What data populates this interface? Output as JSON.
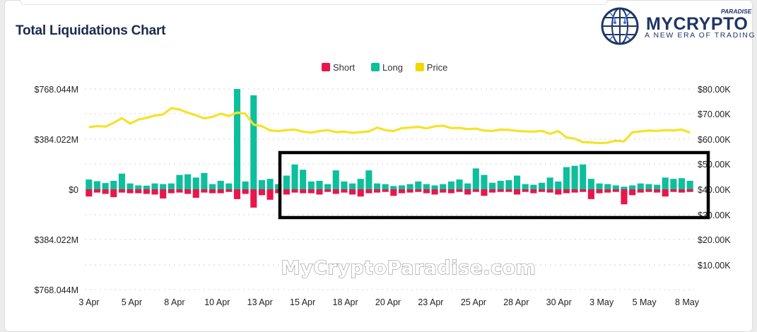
{
  "title": "Total Liquidations Chart",
  "logo": {
    "word": "MYCRYPTO",
    "tagline": "A NEW ERA OF TRADING",
    "paradise": "PARADISE",
    "icon": "globe-circuit-icon",
    "color": "#1e3566"
  },
  "watermark": "MyCryptoParadise.com",
  "chart_data": {
    "type": "bar",
    "legend": [
      {
        "name": "Short",
        "color": "#e8164b"
      },
      {
        "name": "Long",
        "color": "#0dbf9c"
      },
      {
        "name": "Price",
        "color": "#f2d600"
      }
    ],
    "legend_position": "top-center",
    "x_tick_labels": [
      "3 Apr",
      "5 Apr",
      "8 Apr",
      "10 Apr",
      "13 Apr",
      "15 Apr",
      "18 Apr",
      "20 Apr",
      "23 Apr",
      "25 Apr",
      "28 Apr",
      "30 Apr",
      "3 May",
      "5 May",
      "8 May"
    ],
    "y_left_tick_labels": [
      "$768.044M",
      "$384.022M",
      "$0",
      "$384.022M",
      "$768.044M"
    ],
    "y_left_range": [
      -768.044,
      768.044
    ],
    "y_right_tick_labels": [
      "$80.00K",
      "$70.00K",
      "$60.00K",
      "$50.00K",
      "$40.00K",
      "$30.00K",
      "$20.00K",
      "$10.00K"
    ],
    "y_right_range": [
      0,
      80000
    ],
    "grid": "horizontal dotted",
    "long": [
      75,
      62,
      48,
      65,
      120,
      45,
      30,
      28,
      45,
      40,
      45,
      110,
      115,
      90,
      125,
      40,
      65,
      45,
      768,
      60,
      720,
      70,
      80,
      40,
      105,
      190,
      150,
      60,
      65,
      40,
      145,
      60,
      45,
      80,
      145,
      45,
      40,
      25,
      30,
      40,
      60,
      40,
      30,
      40,
      60,
      75,
      45,
      160,
      110,
      50,
      65,
      70,
      105,
      40,
      35,
      50,
      90,
      60,
      170,
      180,
      190,
      80,
      45,
      40,
      30,
      20,
      30,
      45,
      40,
      35,
      90,
      80,
      85,
      65
    ],
    "short": [
      55,
      25,
      35,
      60,
      25,
      30,
      30,
      35,
      40,
      70,
      30,
      25,
      35,
      65,
      25,
      30,
      30,
      20,
      75,
      35,
      140,
      45,
      80,
      30,
      40,
      25,
      30,
      30,
      40,
      20,
      35,
      25,
      40,
      55,
      30,
      25,
      20,
      50,
      30,
      25,
      20,
      30,
      40,
      25,
      30,
      20,
      40,
      20,
      50,
      25,
      20,
      20,
      40,
      20,
      30,
      20,
      25,
      40,
      30,
      25,
      20,
      75,
      30,
      25,
      20,
      115,
      45,
      25,
      20,
      25,
      55,
      20,
      25,
      20
    ],
    "price": [
      64800,
      65200,
      65000,
      66500,
      68400,
      66200,
      67800,
      68500,
      69400,
      69800,
      72400,
      71800,
      70600,
      69500,
      68300,
      68900,
      70200,
      69200,
      70600,
      70200,
      65800,
      65200,
      63500,
      63200,
      63600,
      63800,
      63000,
      62600,
      63200,
      63600,
      62800,
      63000,
      62500,
      62800,
      63100,
      64600,
      63600,
      63200,
      64400,
      64600,
      64900,
      64300,
      65100,
      65400,
      64400,
      64500,
      64000,
      64200,
      63400,
      63300,
      63800,
      63700,
      63300,
      63100,
      63000,
      63300,
      62100,
      63200,
      60700,
      60200,
      58800,
      58700,
      58400,
      58600,
      59400,
      59100,
      62700,
      63100,
      63400,
      63300,
      63600,
      63500,
      63800,
      62600
    ]
  }
}
